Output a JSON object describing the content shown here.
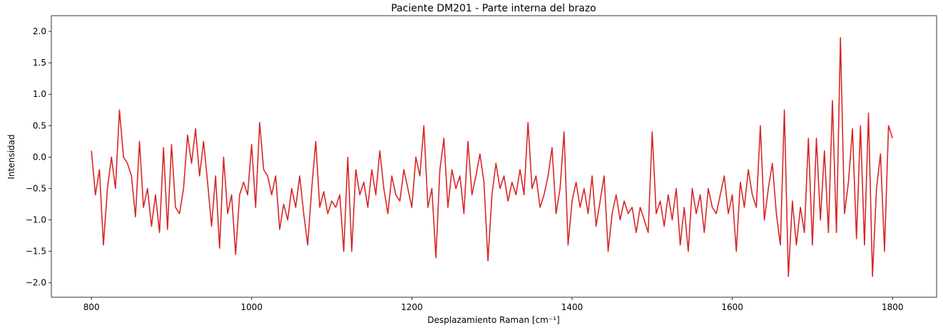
{
  "chart_data": {
    "type": "line",
    "title": "Paciente DM201 - Parte interna del brazo",
    "xlabel": "Desplazamiento Raman [cm⁻¹]",
    "ylabel": "Intensidad",
    "x": [
      800,
      805,
      810,
      815,
      820,
      825,
      830,
      835,
      840,
      845,
      850,
      855,
      860,
      865,
      870,
      875,
      880,
      885,
      890,
      895,
      900,
      905,
      910,
      915,
      920,
      925,
      930,
      935,
      940,
      945,
      950,
      955,
      960,
      965,
      970,
      975,
      980,
      985,
      990,
      995,
      1000,
      1005,
      1010,
      1015,
      1020,
      1025,
      1030,
      1035,
      1040,
      1045,
      1050,
      1055,
      1060,
      1065,
      1070,
      1075,
      1080,
      1085,
      1090,
      1095,
      1100,
      1105,
      1110,
      1115,
      1120,
      1125,
      1130,
      1135,
      1140,
      1145,
      1150,
      1155,
      1160,
      1165,
      1170,
      1175,
      1180,
      1185,
      1190,
      1195,
      1200,
      1205,
      1210,
      1215,
      1220,
      1225,
      1230,
      1235,
      1240,
      1245,
      1250,
      1255,
      1260,
      1265,
      1270,
      1275,
      1280,
      1285,
      1290,
      1295,
      1300,
      1305,
      1310,
      1315,
      1320,
      1325,
      1330,
      1335,
      1340,
      1345,
      1350,
      1355,
      1360,
      1365,
      1370,
      1375,
      1380,
      1385,
      1390,
      1395,
      1400,
      1405,
      1410,
      1415,
      1420,
      1425,
      1430,
      1435,
      1440,
      1445,
      1450,
      1455,
      1460,
      1465,
      1470,
      1475,
      1480,
      1485,
      1490,
      1495,
      1500,
      1505,
      1510,
      1515,
      1520,
      1525,
      1530,
      1535,
      1540,
      1545,
      1550,
      1555,
      1560,
      1565,
      1570,
      1575,
      1580,
      1585,
      1590,
      1595,
      1600,
      1605,
      1610,
      1615,
      1620,
      1625,
      1630,
      1635,
      1640,
      1645,
      1650,
      1655,
      1660,
      1665,
      1670,
      1675,
      1680,
      1685,
      1690,
      1695,
      1700,
      1705,
      1710,
      1715,
      1720,
      1725,
      1730,
      1735,
      1740,
      1745,
      1750,
      1755,
      1760,
      1765,
      1770,
      1775,
      1780,
      1785,
      1790,
      1795,
      1800
    ],
    "series": [
      {
        "color": "#d62728",
        "values": [
          0.1,
          -0.6,
          -0.2,
          -1.4,
          -0.5,
          0.0,
          -0.5,
          0.75,
          0.0,
          -0.1,
          -0.3,
          -0.95,
          0.25,
          -0.8,
          -0.5,
          -1.1,
          -0.6,
          -1.2,
          0.15,
          -1.15,
          0.2,
          -0.8,
          -0.9,
          -0.5,
          0.35,
          -0.1,
          0.45,
          -0.3,
          0.25,
          -0.4,
          -1.1,
          -0.3,
          -1.45,
          0.0,
          -0.9,
          -0.6,
          -1.55,
          -0.6,
          -0.4,
          -0.6,
          0.2,
          -0.8,
          0.55,
          -0.2,
          -0.3,
          -0.6,
          -0.3,
          -1.15,
          -0.75,
          -1.0,
          -0.5,
          -0.8,
          -0.3,
          -0.9,
          -1.4,
          -0.5,
          0.25,
          -0.8,
          -0.55,
          -0.9,
          -0.7,
          -0.8,
          -0.6,
          -1.5,
          0.0,
          -1.5,
          -0.2,
          -0.6,
          -0.4,
          -0.8,
          -0.2,
          -0.6,
          0.1,
          -0.5,
          -0.9,
          -0.3,
          -0.6,
          -0.7,
          -0.2,
          -0.5,
          -0.8,
          0.0,
          -0.3,
          0.5,
          -0.8,
          -0.5,
          -1.6,
          -0.2,
          0.3,
          -0.8,
          -0.2,
          -0.5,
          -0.3,
          -0.9,
          0.25,
          -0.6,
          -0.3,
          0.05,
          -0.4,
          -1.65,
          -0.6,
          -0.1,
          -0.5,
          -0.3,
          -0.7,
          -0.4,
          -0.6,
          -0.2,
          -0.6,
          0.55,
          -0.5,
          -0.3,
          -0.8,
          -0.6,
          -0.3,
          0.15,
          -0.9,
          -0.5,
          0.4,
          -1.4,
          -0.7,
          -0.4,
          -0.8,
          -0.5,
          -0.9,
          -0.3,
          -1.1,
          -0.7,
          -0.3,
          -1.5,
          -0.9,
          -0.6,
          -1.0,
          -0.7,
          -0.9,
          -0.8,
          -1.2,
          -0.8,
          -1.0,
          -1.2,
          0.4,
          -0.9,
          -0.7,
          -1.1,
          -0.6,
          -1.0,
          -0.5,
          -1.4,
          -0.8,
          -1.5,
          -0.5,
          -0.9,
          -0.6,
          -1.2,
          -0.5,
          -0.8,
          -0.9,
          -0.6,
          -0.3,
          -0.9,
          -0.6,
          -1.5,
          -0.4,
          -0.8,
          -0.2,
          -0.6,
          -0.8,
          0.5,
          -1.0,
          -0.5,
          -0.1,
          -0.9,
          -1.4,
          0.75,
          -1.9,
          -0.7,
          -1.4,
          -0.8,
          -1.2,
          0.3,
          -1.4,
          0.3,
          -1.0,
          0.1,
          -1.2,
          0.9,
          -1.2,
          1.9,
          -0.9,
          -0.4,
          0.45,
          -1.3,
          0.5,
          -1.4,
          0.7,
          -1.9,
          -0.5,
          0.05,
          -1.5,
          0.5,
          0.3
        ]
      }
    ],
    "xlim": [
      750,
      1855
    ],
    "ylim": [
      -2.23,
      2.25
    ],
    "xticks": [
      800,
      1000,
      1200,
      1400,
      1600,
      1800
    ],
    "yticks": [
      {
        "value": -2,
        "label": "−2.0"
      },
      {
        "value": -1.5,
        "label": "−1.5"
      },
      {
        "value": -1,
        "label": "−1.0"
      },
      {
        "value": -0.5,
        "label": "−0.5"
      },
      {
        "value": 0,
        "label": "0.0"
      },
      {
        "value": 0.5,
        "label": "0.5"
      },
      {
        "value": 1,
        "label": "1.0"
      },
      {
        "value": 1.5,
        "label": "1.5"
      },
      {
        "value": 2,
        "label": "2.0"
      }
    ]
  }
}
